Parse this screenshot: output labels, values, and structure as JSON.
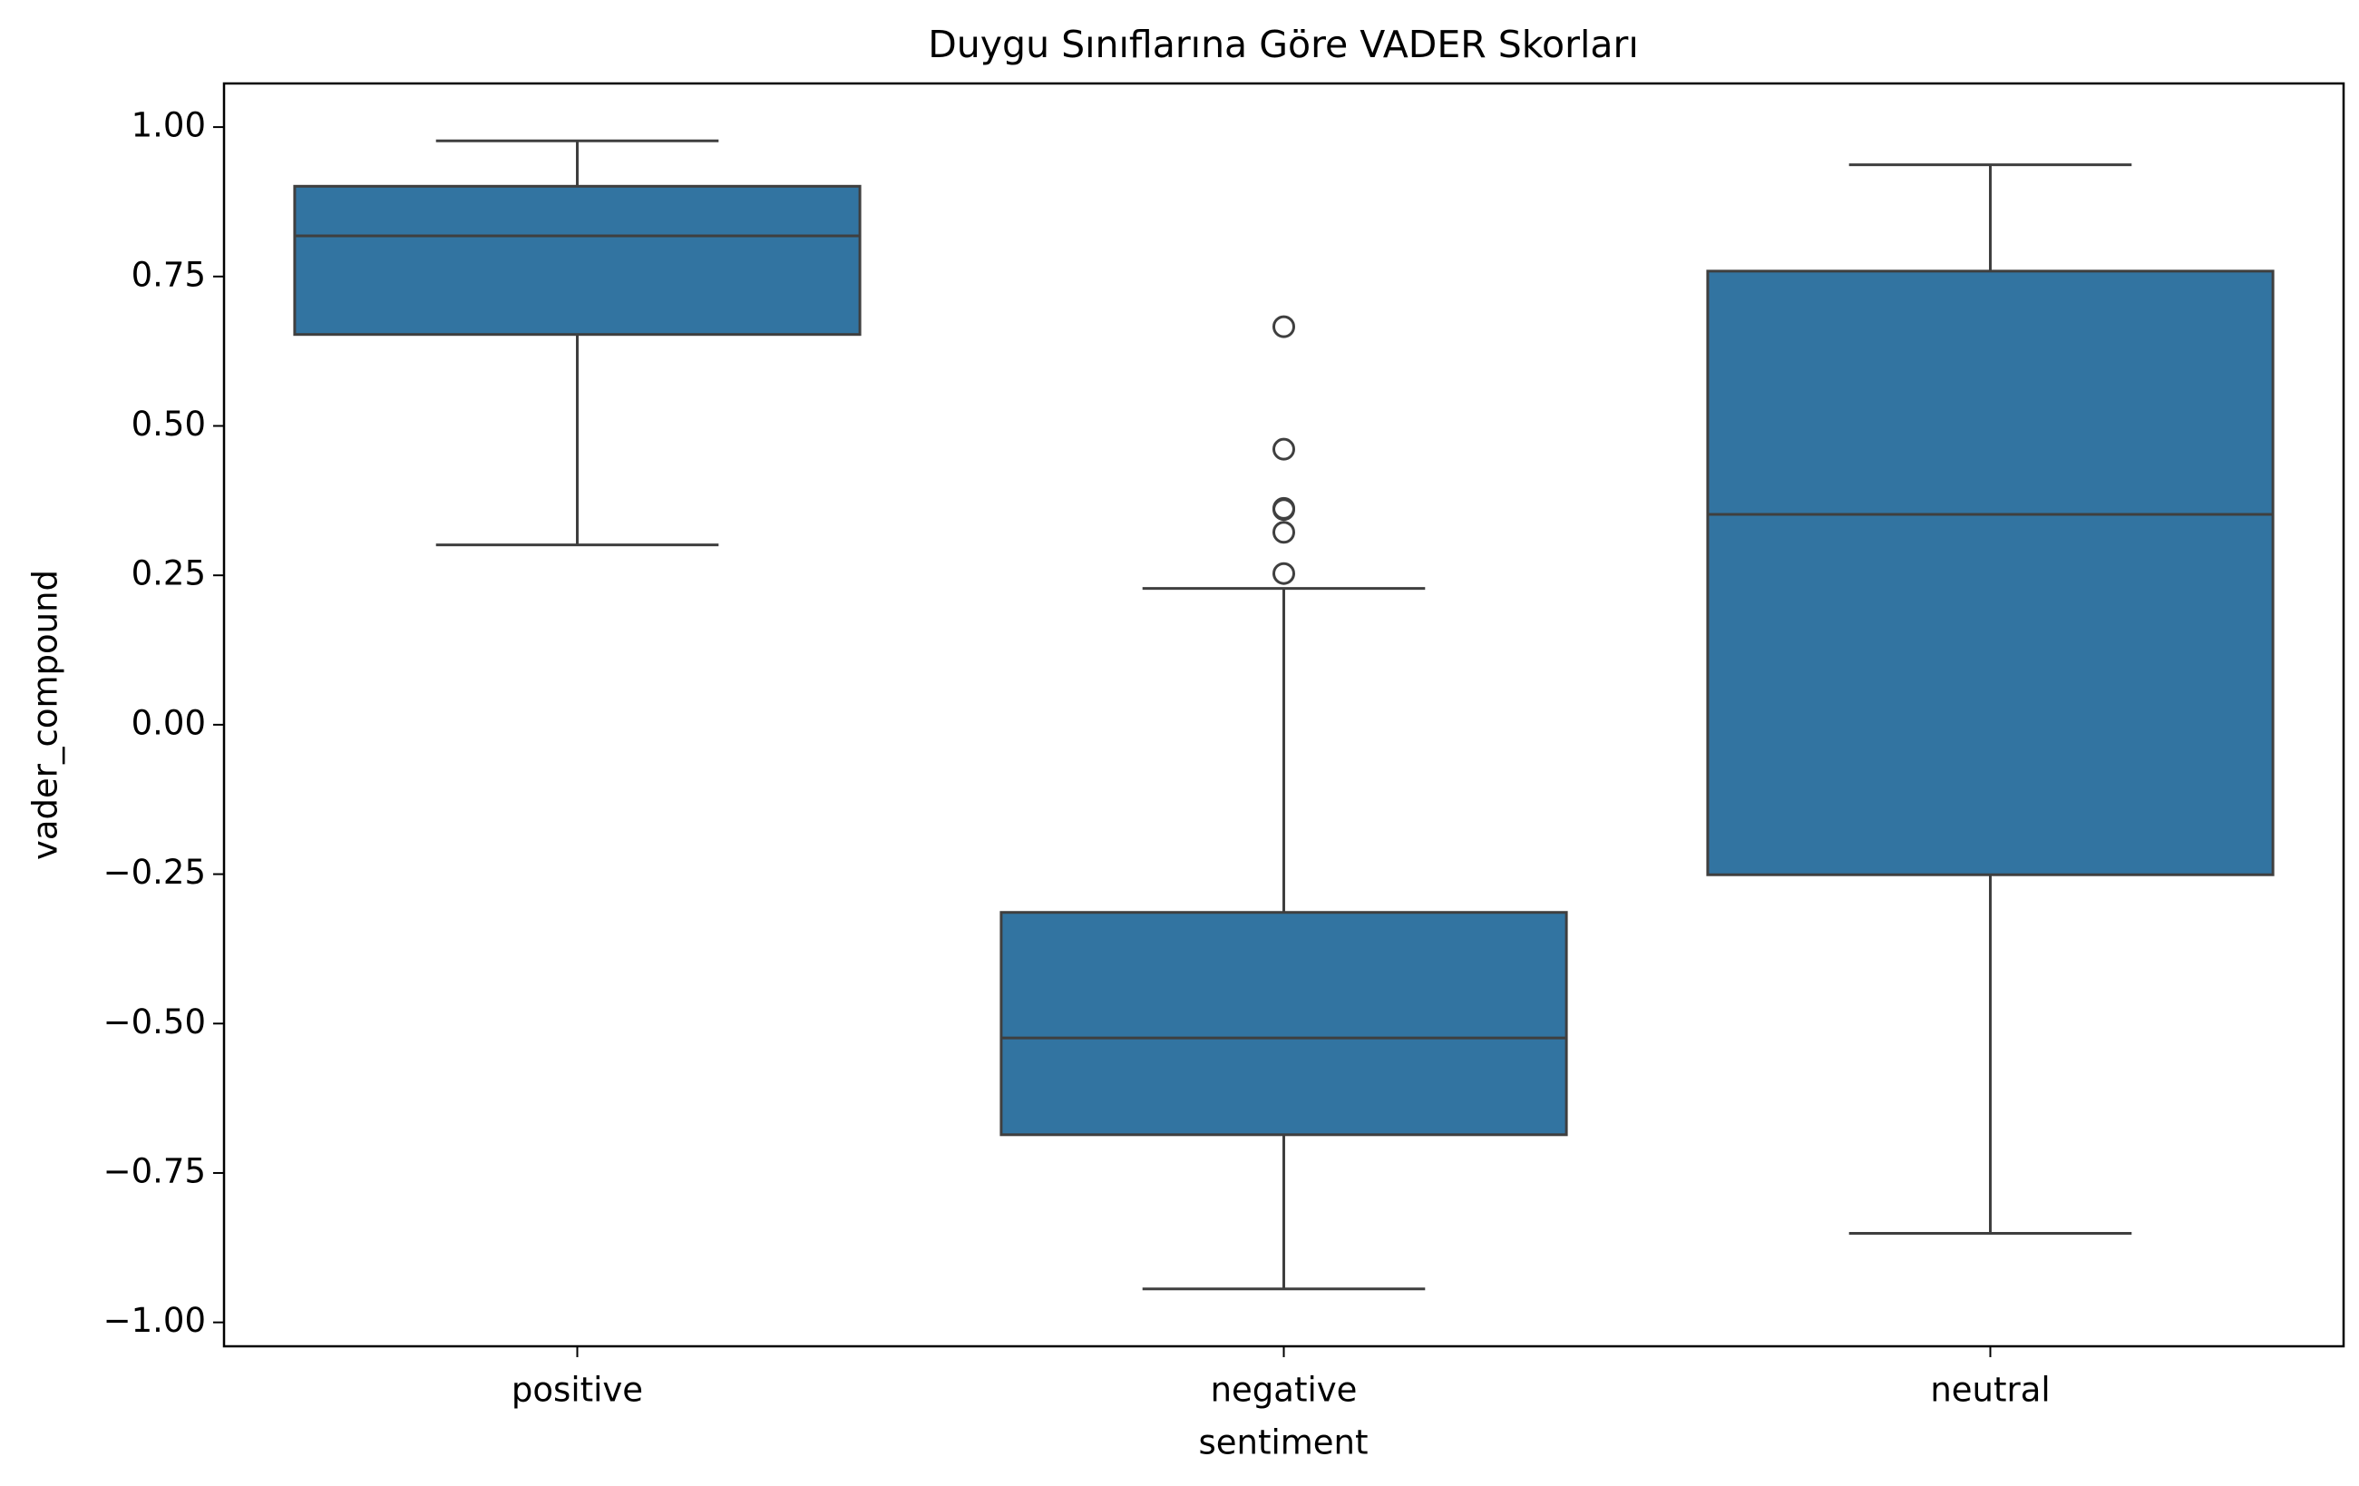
{
  "chart_data": {
    "type": "box",
    "title": "Duygu Sınıflarına Göre VADER Skorları",
    "x_label": "sentiment",
    "y_label": "vader_compound",
    "categories": [
      "positive",
      "negative",
      "neutral"
    ],
    "color": "#3274a1",
    "boxes": [
      {
        "low": 0.301,
        "q1": 0.653,
        "median": 0.818,
        "q3": 0.901,
        "high": 0.977,
        "outliers": []
      },
      {
        "low": -0.944,
        "q1": -0.686,
        "median": -0.524,
        "q3": -0.314,
        "high": 0.228,
        "outliers": [
          0.666,
          0.461,
          0.362,
          0.36,
          0.322,
          0.253
        ]
      },
      {
        "low": -0.851,
        "q1": -0.251,
        "median": 0.352,
        "q3": 0.759,
        "high": 0.937,
        "outliers": []
      }
    ],
    "ylim": [
      -1.04,
      1.073
    ],
    "yticks": [
      {
        "value": 1,
        "label": "1.00"
      },
      0.75,
      {
        "value": 0.5,
        "label": "0.50"
      },
      0.25,
      {
        "value": 0,
        "label": "0.00"
      },
      {
        "value": -0.25,
        "label": "−0.25"
      },
      {
        "value": -0.5,
        "label": "−0.50"
      },
      {
        "value": -0.75,
        "label": "−0.75"
      },
      {
        "value": -1,
        "label": "−1.00"
      }
    ]
  }
}
